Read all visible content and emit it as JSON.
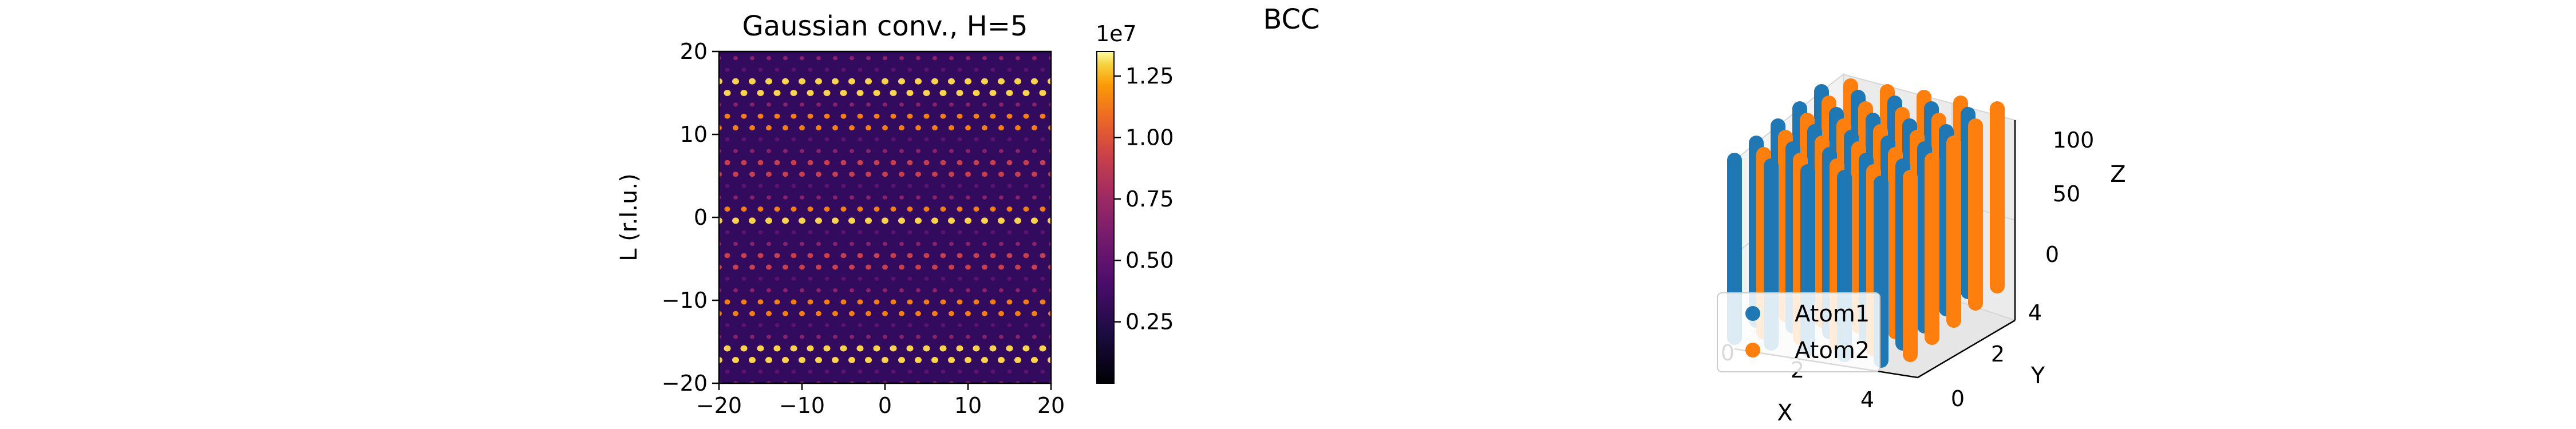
{
  "chart_data": [
    {
      "type": "heatmap",
      "title": "Gaussian conv., H=5",
      "xlabel": "",
      "ylabel": "L (r.l.u.)",
      "xlim": [
        -20,
        20
      ],
      "ylim": [
        -20,
        20
      ],
      "xticks": [
        "−20",
        "−10",
        "0",
        "10",
        "20"
      ],
      "yticks": [
        "−20",
        "−10",
        "0",
        "10",
        "20"
      ],
      "colormap": "inferno",
      "colorbar": {
        "exponent_label": "1e7",
        "ticks": [
          "0.25",
          "0.50",
          "0.75",
          "1.00",
          "1.25"
        ],
        "tick_values": [
          0.25,
          0.5,
          0.75,
          1.0,
          1.25
        ],
        "range": [
          0.0,
          1.35
        ]
      },
      "pattern": {
        "x_period": 2,
        "y_period": 2.8,
        "bright_rows_L": [
          0,
          16,
          -16,
          11,
          -11
        ],
        "moderate_rows_L": [
          5.5,
          -5.5
        ]
      }
    },
    {
      "type": "scatter",
      "title": "BCC",
      "projection": "3d",
      "xlabel": "X",
      "ylabel": "Y",
      "zlabel": "Z",
      "xticks": [
        "0",
        "2",
        "4"
      ],
      "yticks": [
        "0",
        "2",
        "4"
      ],
      "zticks": [
        "0",
        "50",
        "100"
      ],
      "xlim": [
        0,
        5
      ],
      "ylim": [
        0,
        5
      ],
      "zlim": [
        0,
        100
      ],
      "legend": {
        "placement": "lower-left"
      },
      "series": [
        {
          "name": "Atom1",
          "color": "#1f77b4",
          "grid_offset": 0,
          "z_range": [
            0,
            100
          ]
        },
        {
          "name": "Atom2",
          "color": "#ff7f0e",
          "grid_offset": 0.5,
          "z_range": [
            0,
            100
          ]
        }
      ]
    }
  ]
}
